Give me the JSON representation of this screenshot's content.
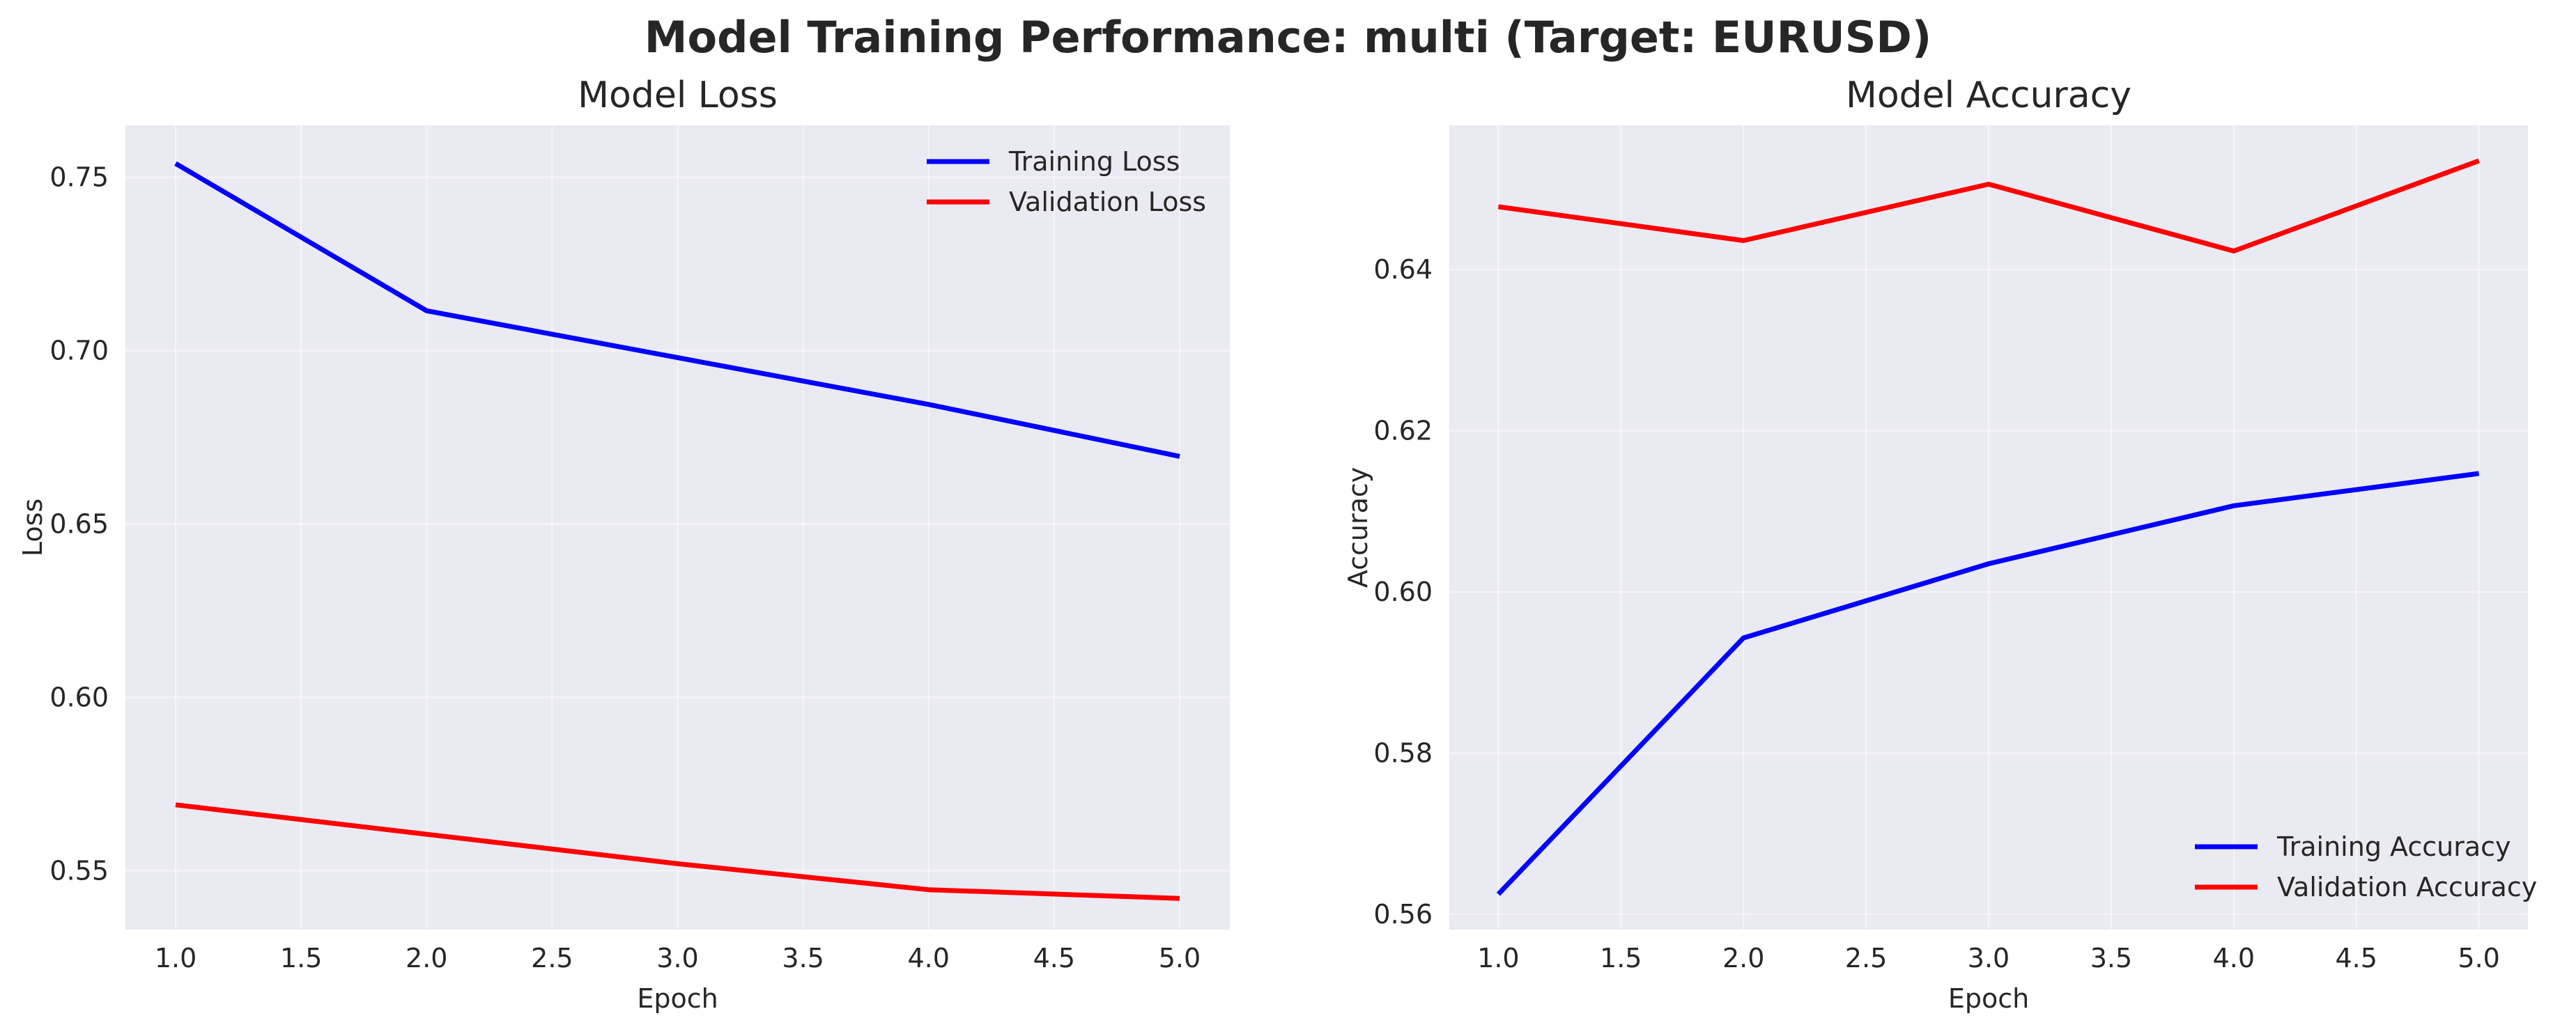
{
  "suptitle": "Model Training Performance: multi (Target: EURUSD)",
  "chart_data": [
    {
      "type": "line",
      "title": "Model Loss",
      "xlabel": "Epoch",
      "ylabel": "Loss",
      "x": [
        1,
        2,
        3,
        4,
        5
      ],
      "xlim": [
        0.8,
        5.2
      ],
      "ylim": [
        0.533,
        0.765
      ],
      "xticks": [
        "1.0",
        "1.5",
        "2.0",
        "2.5",
        "3.0",
        "3.5",
        "4.0",
        "4.5",
        "5.0"
      ],
      "yticks": [
        "0.55",
        "0.60",
        "0.65",
        "0.70",
        "0.75"
      ],
      "grid": true,
      "legend_position": "top-right",
      "series": [
        {
          "name": "Training Loss",
          "color": "#0000ff",
          "values": [
            0.754,
            0.7115,
            0.698,
            0.6845,
            0.6695
          ]
        },
        {
          "name": "Validation Loss",
          "color": "#ff0000",
          "values": [
            0.569,
            0.5605,
            0.552,
            0.5445,
            0.542
          ]
        }
      ]
    },
    {
      "type": "line",
      "title": "Model Accuracy",
      "xlabel": "Epoch",
      "ylabel": "Accuracy",
      "x": [
        1,
        2,
        3,
        4,
        5
      ],
      "xlim": [
        0.8,
        5.2
      ],
      "ylim": [
        0.5581,
        0.6579
      ],
      "xticks": [
        "1.0",
        "1.5",
        "2.0",
        "2.5",
        "3.0",
        "3.5",
        "4.0",
        "4.5",
        "5.0"
      ],
      "yticks": [
        "0.56",
        "0.58",
        "0.60",
        "0.62",
        "0.64"
      ],
      "grid": true,
      "legend_position": "bottom-right",
      "series": [
        {
          "name": "Training Accuracy",
          "color": "#0000ff",
          "values": [
            0.5625,
            0.5943,
            0.6035,
            0.6107,
            0.6147
          ]
        },
        {
          "name": "Validation Accuracy",
          "color": "#ff0000",
          "values": [
            0.6478,
            0.6436,
            0.6506,
            0.6423,
            0.6535
          ]
        }
      ]
    }
  ]
}
